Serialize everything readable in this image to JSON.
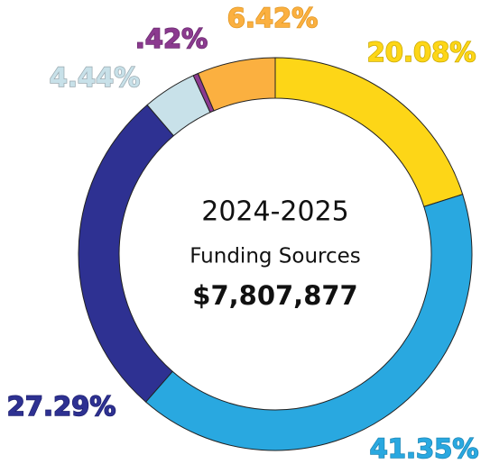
{
  "chart_data": {
    "type": "donut",
    "center_texts": [
      "2024-2025",
      "Funding Sources",
      "$7,807,877"
    ],
    "values": [
      20.08,
      41.35,
      27.29,
      4.44,
      0.42,
      6.42
    ],
    "value_labels": [
      "20.08%",
      "41.35%",
      "27.29%",
      "4.44%",
      ".42%",
      "6.42%"
    ],
    "colors": [
      "#fdd617",
      "#29a8e0",
      "#2e3192",
      "#c8e1e9",
      "#8b3a8f",
      "#fbb040"
    ]
  }
}
